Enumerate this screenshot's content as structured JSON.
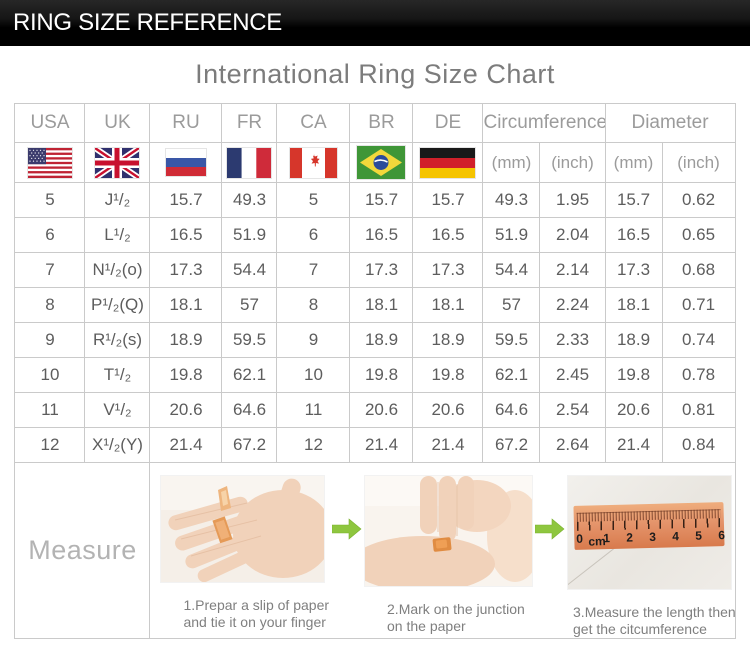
{
  "header_bar": {
    "title": "RING SIZE REFERENCE"
  },
  "page_title": "International Ring Size Chart",
  "table": {
    "columns": [
      "USA",
      "UK",
      "RU",
      "FR",
      "CA",
      "BR",
      "DE"
    ],
    "group_headers": [
      "Circumference",
      "Diameter"
    ],
    "sub_headers": [
      "(mm)",
      "(inch)",
      "(mm)",
      "(inch)"
    ],
    "flag_icons": [
      "usa",
      "uk",
      "russia",
      "france",
      "canada",
      "brazil",
      "germany"
    ]
  },
  "chart_data": {
    "type": "table",
    "title": "International Ring Size Chart",
    "columns": [
      "USA",
      "UK",
      "RU",
      "FR",
      "CA",
      "BR",
      "DE",
      "Circumference (mm)",
      "Circumference (inch)",
      "Diameter (mm)",
      "Diameter (inch)"
    ],
    "rows": [
      [
        "5",
        "J¹/₂",
        "15.7",
        "49.3",
        "5",
        "15.7",
        "15.7",
        "49.3",
        "1.95",
        "15.7",
        "0.62"
      ],
      [
        "6",
        "L¹/₂",
        "16.5",
        "51.9",
        "6",
        "16.5",
        "16.5",
        "51.9",
        "2.04",
        "16.5",
        "0.65"
      ],
      [
        "7",
        "N¹/₂(o)",
        "17.3",
        "54.4",
        "7",
        "17.3",
        "17.3",
        "54.4",
        "2.14",
        "17.3",
        "0.68"
      ],
      [
        "8",
        "P¹/₂(Q)",
        "18.1",
        "57",
        "8",
        "18.1",
        "18.1",
        "57",
        "2.24",
        "18.1",
        "0.71"
      ],
      [
        "9",
        "R¹/₂(s)",
        "18.9",
        "59.5",
        "9",
        "18.9",
        "18.9",
        "59.5",
        "2.33",
        "18.9",
        "0.74"
      ],
      [
        "10",
        "T¹/₂",
        "19.8",
        "62.1",
        "10",
        "19.8",
        "19.8",
        "62.1",
        "2.45",
        "19.8",
        "0.78"
      ],
      [
        "11",
        "V¹/₂",
        "20.6",
        "64.6",
        "11",
        "20.6",
        "20.6",
        "64.6",
        "2.54",
        "20.6",
        "0.81"
      ],
      [
        "12",
        "X¹/₂(Y)",
        "21.4",
        "67.2",
        "12",
        "21.4",
        "21.4",
        "67.2",
        "2.64",
        "21.4",
        "0.84"
      ]
    ]
  },
  "measure": {
    "label": "Measure",
    "steps": [
      {
        "caption_line1": "1.Prepar a slip of paper",
        "caption_line2": "and tie it on your finger"
      },
      {
        "caption_line1": "2.Mark on the junction",
        "caption_line2": "on the paper"
      },
      {
        "caption_line1": "3.Measure the length then",
        "caption_line2": "get the citcumference"
      }
    ],
    "ruler_numbers": [
      "0",
      "cm",
      "1",
      "2",
      "3",
      "4",
      "5",
      "6"
    ]
  }
}
